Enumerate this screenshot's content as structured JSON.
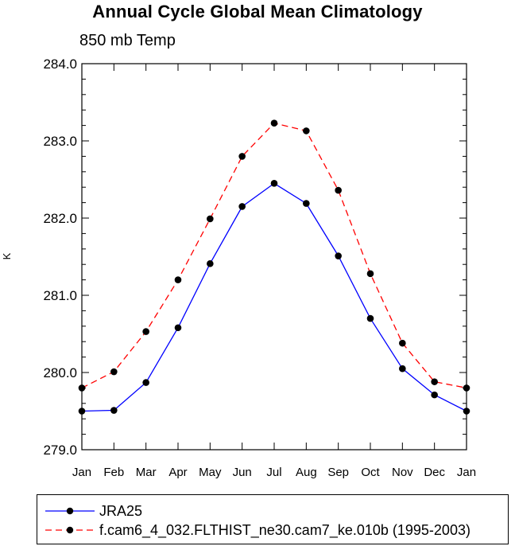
{
  "chart_data": {
    "type": "line",
    "title": "Annual Cycle Global Mean Climatology",
    "subtitle": "850 mb Temp",
    "xlabel": "",
    "ylabel": "K",
    "categories": [
      "Jan",
      "Feb",
      "Mar",
      "Apr",
      "May",
      "Jun",
      "Jul",
      "Aug",
      "Sep",
      "Oct",
      "Nov",
      "Dec",
      "Jan"
    ],
    "ylim": [
      279.0,
      284.0
    ],
    "yticks": [
      "279.0",
      "280.0",
      "281.0",
      "282.0",
      "283.0",
      "284.0"
    ],
    "series": [
      {
        "name": "JRA25",
        "color": "#0000ff",
        "style": "solid",
        "values": [
          279.5,
          279.51,
          279.87,
          280.58,
          281.41,
          282.15,
          282.45,
          282.19,
          281.51,
          280.7,
          280.05,
          279.71,
          279.5
        ]
      },
      {
        "name": "f.cam6_4_032.FLTHIST_ne30.cam7_ke.010b (1995-2003)",
        "color": "#ff0000",
        "style": "dashed",
        "values": [
          279.8,
          280.01,
          280.53,
          281.2,
          281.99,
          282.8,
          283.23,
          283.13,
          282.36,
          281.28,
          280.38,
          279.88,
          279.8
        ]
      }
    ],
    "legend_position": "bottom"
  }
}
